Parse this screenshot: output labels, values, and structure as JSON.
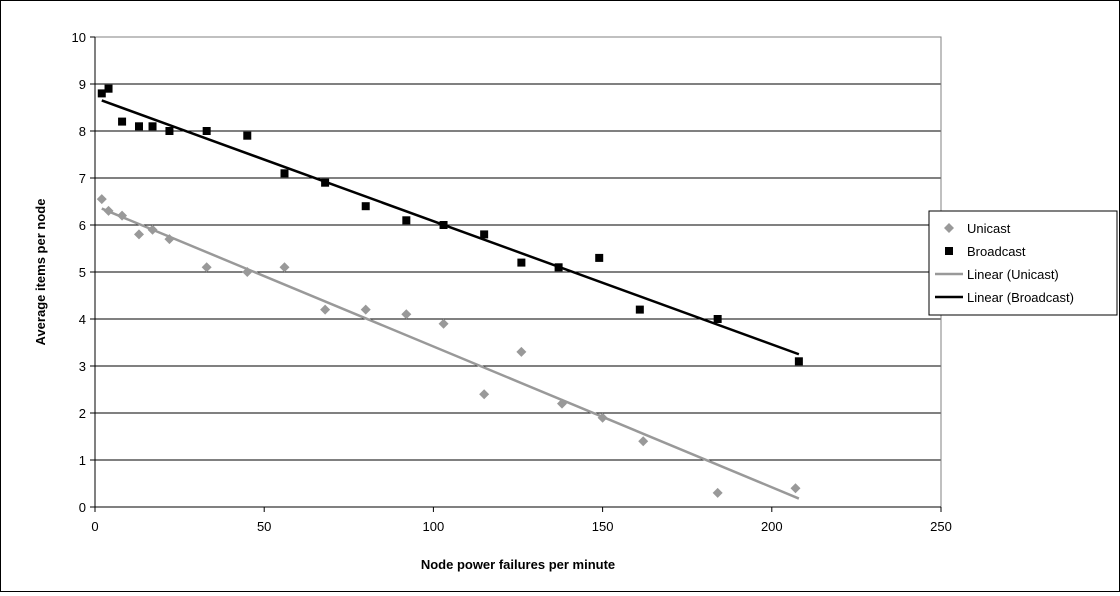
{
  "chart_data": {
    "type": "scatter",
    "title": "",
    "xlabel": "Node power failures per minute",
    "ylabel": "Average items per node",
    "xlim": [
      0,
      250
    ],
    "ylim": [
      0,
      10
    ],
    "x_ticks": [
      0,
      50,
      100,
      150,
      200,
      250
    ],
    "y_ticks": [
      0,
      1,
      2,
      3,
      4,
      5,
      6,
      7,
      8,
      9,
      10
    ],
    "grid": "horizontal",
    "legend_position": "right",
    "series": [
      {
        "name": "Unicast",
        "kind": "scatter",
        "marker": "diamond",
        "color": "#999999",
        "points": [
          [
            2,
            6.55
          ],
          [
            4,
            6.3
          ],
          [
            8,
            6.2
          ],
          [
            13,
            5.8
          ],
          [
            17,
            5.9
          ],
          [
            22,
            5.7
          ],
          [
            33,
            5.1
          ],
          [
            45,
            5.0
          ],
          [
            56,
            5.1
          ],
          [
            68,
            4.2
          ],
          [
            80,
            4.2
          ],
          [
            92,
            4.1
          ],
          [
            103,
            3.9
          ],
          [
            115,
            2.4
          ],
          [
            126,
            3.3
          ],
          [
            138,
            2.2
          ],
          [
            150,
            1.9
          ],
          [
            162,
            1.4
          ],
          [
            184,
            0.3
          ],
          [
            207,
            0.4
          ]
        ]
      },
      {
        "name": "Broadcast",
        "kind": "scatter",
        "marker": "square",
        "color": "#000000",
        "points": [
          [
            2,
            8.8
          ],
          [
            4,
            8.9
          ],
          [
            8,
            8.2
          ],
          [
            13,
            8.1
          ],
          [
            17,
            8.1
          ],
          [
            22,
            8.0
          ],
          [
            33,
            8.0
          ],
          [
            45,
            7.9
          ],
          [
            56,
            7.1
          ],
          [
            68,
            6.9
          ],
          [
            80,
            6.4
          ],
          [
            92,
            6.1
          ],
          [
            103,
            6.0
          ],
          [
            115,
            5.8
          ],
          [
            126,
            5.2
          ],
          [
            137,
            5.1
          ],
          [
            149,
            5.3
          ],
          [
            161,
            4.2
          ],
          [
            184,
            4.0
          ],
          [
            208,
            3.1
          ]
        ]
      },
      {
        "name": "Linear (Unicast)",
        "kind": "trendline",
        "color": "#999999",
        "points": [
          [
            2,
            6.35
          ],
          [
            208,
            0.18
          ]
        ]
      },
      {
        "name": "Linear (Broadcast)",
        "kind": "trendline",
        "color": "#000000",
        "points": [
          [
            2,
            8.65
          ],
          [
            208,
            3.25
          ]
        ]
      }
    ]
  }
}
